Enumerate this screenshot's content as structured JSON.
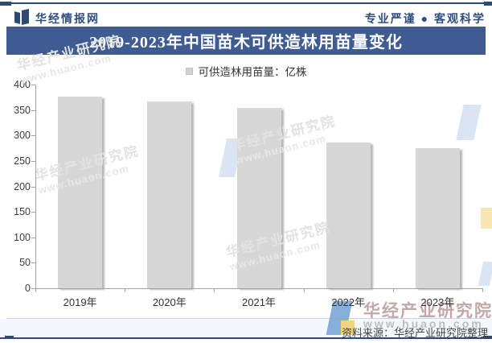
{
  "header": {
    "brand": "华经情报网",
    "slogan": "专业严谨 ● 客观科学",
    "title": "2019-2023年中国苗木可供造林用苗量变化"
  },
  "legend": {
    "label": "可供造林用苗量：亿株"
  },
  "chart_data": {
    "type": "bar",
    "title": "2019-2023年中国苗木可供造林用苗量变化",
    "categories": [
      "2019年",
      "2020年",
      "2021年",
      "2022年",
      "2023年"
    ],
    "values": [
      377,
      367,
      354,
      286,
      276
    ],
    "series_name": "可供造林用苗量",
    "unit": "亿株",
    "xlabel": "",
    "ylabel": "",
    "ylim": [
      0,
      400
    ],
    "ytick_interval": 50,
    "yticks": [
      400,
      350,
      300,
      250,
      200,
      150,
      100,
      50,
      0
    ],
    "grid": false,
    "legend_position": "top-center",
    "bar_color": "#d7d7d7"
  },
  "watermark": {
    "name": "华经产业研究院",
    "url": "www.huaon.com"
  },
  "footer": {
    "source": "资料来源：华经产业研究院整理"
  },
  "colors": {
    "brand_navy": "#2d4a74",
    "banner_bg": "#3e5c92",
    "bar_fill": "#d7d7d7",
    "axis_gray": "#a3a3a3",
    "footer_strip": "#f4f7fb",
    "watermark_blue": "#7ba6d8",
    "watermark_yellow": "#f1d47e"
  }
}
